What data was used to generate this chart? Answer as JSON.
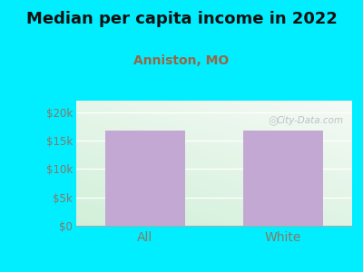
{
  "title": "Median per capita income in 2022",
  "subtitle": "Anniston, MO",
  "categories": [
    "All",
    "White"
  ],
  "values": [
    16800,
    16800
  ],
  "bar_color": "#c4a8d4",
  "title_fontsize": 13,
  "subtitle_fontsize": 10,
  "subtitle_color": "#996644",
  "tick_color": "#887766",
  "bg_outer": "#00eeff",
  "ylim": [
    0,
    22000
  ],
  "yticks": [
    0,
    5000,
    10000,
    15000,
    20000
  ],
  "ytick_labels": [
    "$0",
    "$5k",
    "$10k",
    "$15k",
    "$20k"
  ],
  "watermark": "City-Data.com"
}
